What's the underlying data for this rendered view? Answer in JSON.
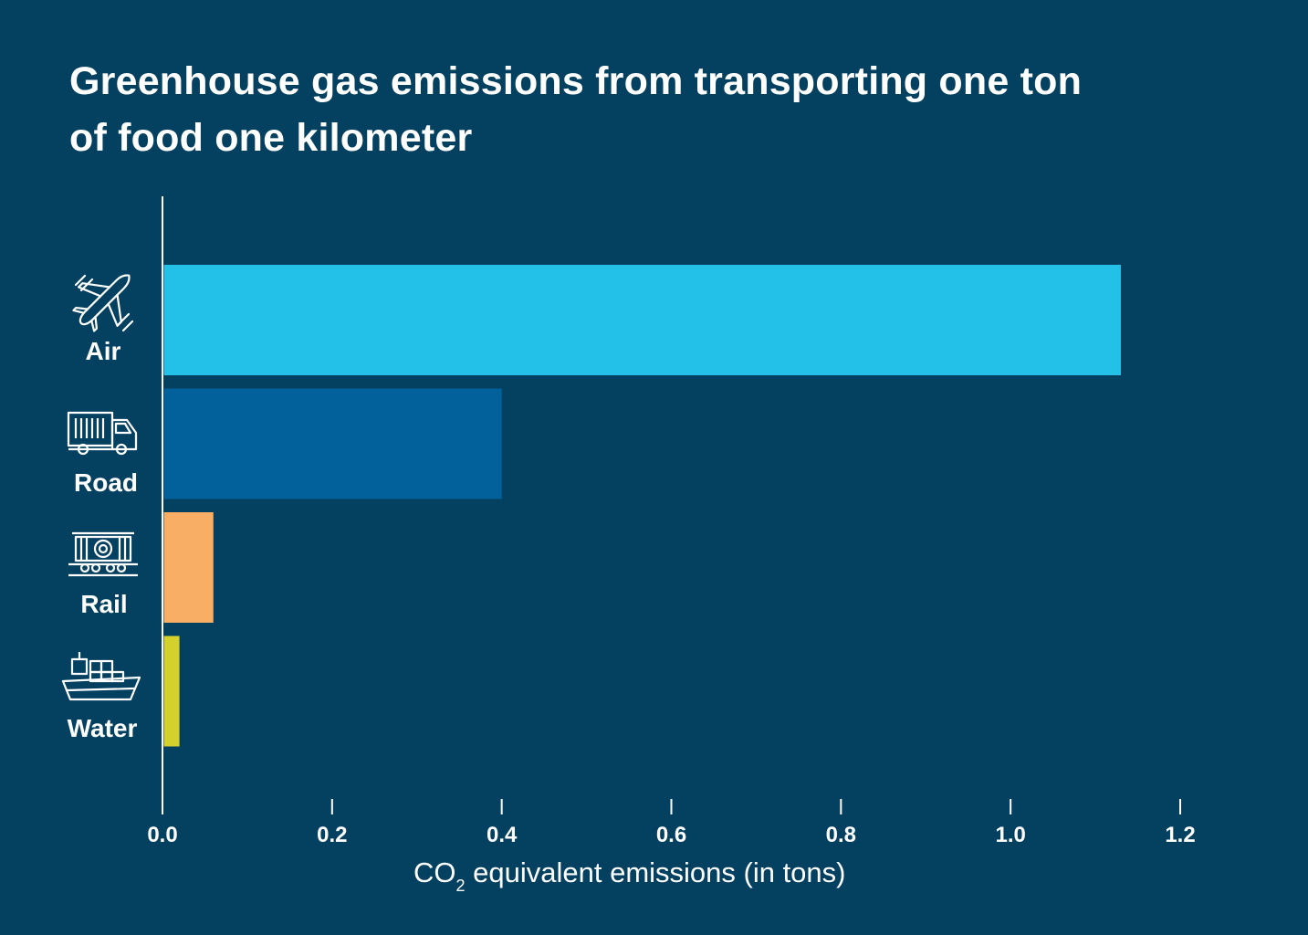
{
  "title_lines": [
    "Greenhouse gas emissions from transporting one ton",
    "of food one kilometer"
  ],
  "xlabel": {
    "prefix": "CO",
    "subscript": "2",
    "suffix": " equivalent emissions (in tons)"
  },
  "colors": {
    "background": "#044161",
    "axis": "#ffffff"
  },
  "chart_data": {
    "type": "bar",
    "orientation": "horizontal",
    "title": "Greenhouse gas emissions from transporting one ton of food one kilometer",
    "xlabel": "CO2 equivalent emissions (in tons)",
    "ylabel": "",
    "categories": [
      "Air",
      "Road",
      "Rail",
      "Water"
    ],
    "icons": [
      "airplane-icon",
      "truck-icon",
      "train-icon",
      "ship-icon"
    ],
    "values": [
      1.13,
      0.4,
      0.06,
      0.02
    ],
    "bar_colors": [
      "#23c1e8",
      "#02609b",
      "#f8ae64",
      "#d5d12c"
    ],
    "xlim": [
      0,
      1.2
    ],
    "xticks": [
      "0.0",
      "0.2",
      "0.4",
      "0.6",
      "0.8",
      "1.0",
      "1.2"
    ],
    "grid": false,
    "legend": "none"
  }
}
